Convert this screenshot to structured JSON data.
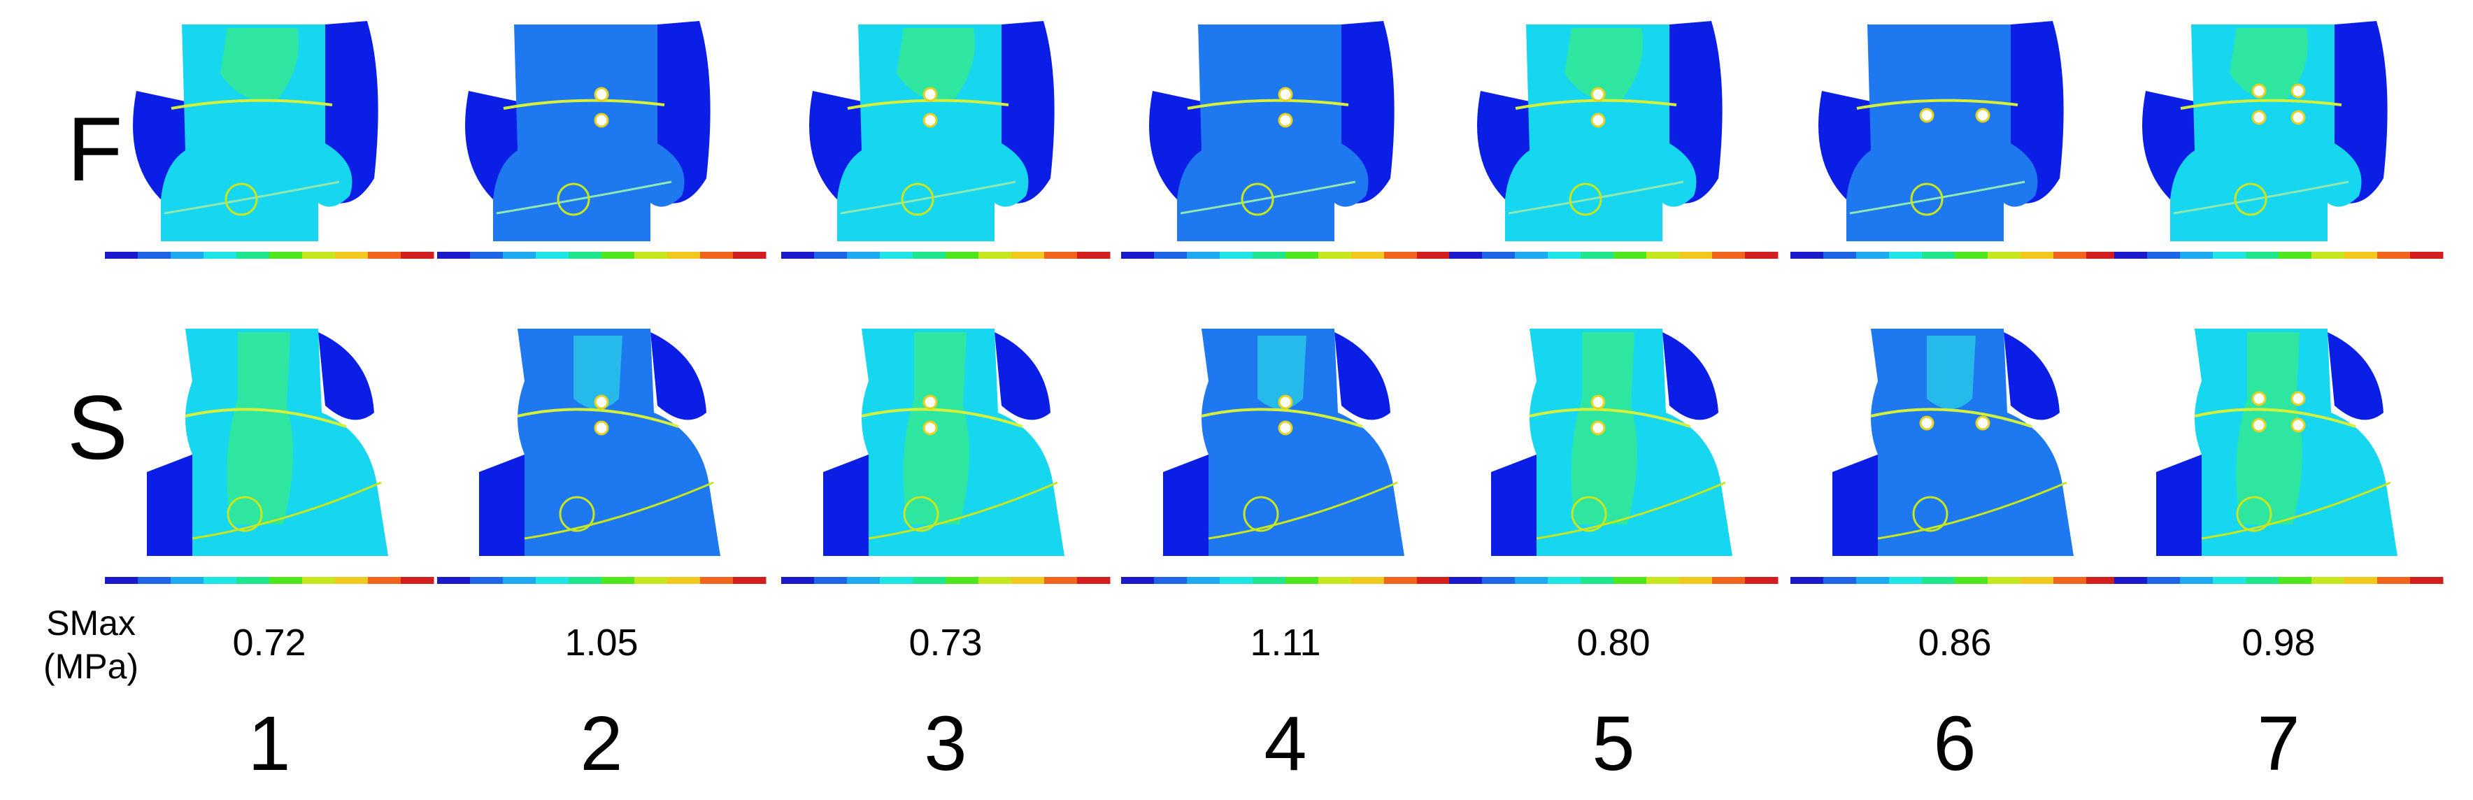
{
  "row_labels": {
    "front": "F",
    "side": "S"
  },
  "smax_label": {
    "line1": "SMax",
    "line2": "(MPa)"
  },
  "models": [
    {
      "index": "1",
      "smax": "0.72",
      "implants": "none"
    },
    {
      "index": "2",
      "smax": "1.05",
      "implants": "center-pair"
    },
    {
      "index": "3",
      "smax": "0.73",
      "implants": "left-pair"
    },
    {
      "index": "4",
      "smax": "1.11",
      "implants": "center-pair"
    },
    {
      "index": "5",
      "smax": "0.80",
      "implants": "left-pair"
    },
    {
      "index": "6",
      "smax": "0.86",
      "implants": "spread-pair"
    },
    {
      "index": "7",
      "smax": "0.98",
      "implants": "quad"
    }
  ],
  "colors": {
    "dark_blue": "#0a1ee6",
    "mid_blue": "#1e78f0",
    "cyan": "#17d7f0",
    "light_cyan": "#2ef0e6",
    "green": "#2ee6a0",
    "scale": [
      "#1a1acc",
      "#1e64e6",
      "#1eaaf0",
      "#1ee6e6",
      "#1ee68c",
      "#50e61e",
      "#c8e61e",
      "#f0c81e",
      "#f0641e",
      "#d21e1e"
    ]
  }
}
